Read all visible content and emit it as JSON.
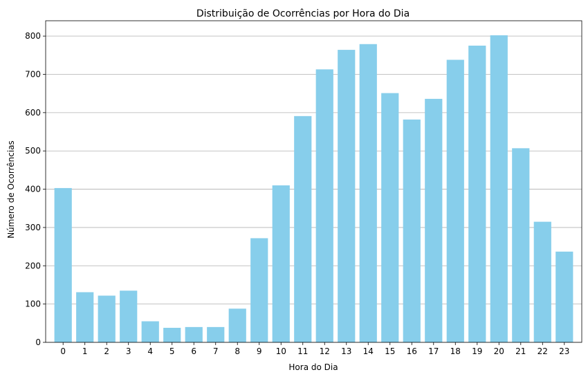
{
  "chart_data": {
    "type": "bar",
    "title": "Distribuição de Ocorrências por Hora do Dia",
    "xlabel": "Hora do Dia",
    "ylabel": "Número de Ocorrências",
    "categories": [
      "0",
      "1",
      "2",
      "3",
      "4",
      "5",
      "6",
      "7",
      "8",
      "9",
      "10",
      "11",
      "12",
      "13",
      "14",
      "15",
      "16",
      "17",
      "18",
      "19",
      "20",
      "21",
      "22",
      "23"
    ],
    "values": [
      403,
      131,
      122,
      135,
      55,
      38,
      40,
      40,
      88,
      272,
      410,
      591,
      713,
      764,
      779,
      651,
      582,
      636,
      738,
      775,
      802,
      507,
      315,
      237
    ],
    "ylim": [
      0,
      840
    ],
    "yticks": [
      0,
      100,
      200,
      300,
      400,
      500,
      600,
      700,
      800
    ],
    "grid": "horizontal",
    "bar_color": "#87ceeb",
    "grid_color": "#b0b0b0"
  }
}
